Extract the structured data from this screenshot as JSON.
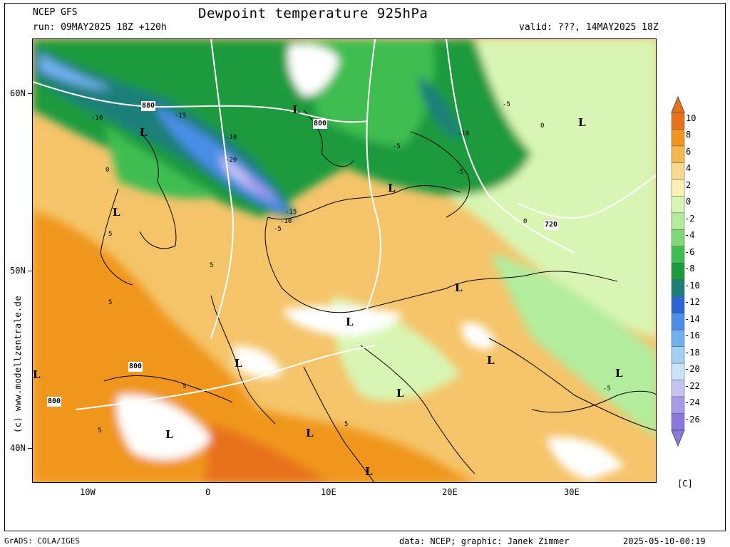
{
  "header": {
    "model": "NCEP GFS",
    "run": "run: 09MAY2025 18Z +120h",
    "title": "Dewpoint temperature 925hPa",
    "valid": "valid: ???, 14MAY2025 18Z"
  },
  "footer": {
    "left": "GrADS: COLA/IGES",
    "credit": "data: NCEP; graphic: Janek Zimmer",
    "timestamp": "2025-05-10-00:19"
  },
  "watermark": "(c) www.modellzentrale.de",
  "axes": {
    "lat_labels": [
      "60N",
      "50N",
      "40N"
    ],
    "lon_labels": [
      "10W",
      "0",
      "10E",
      "20E",
      "30E"
    ]
  },
  "colorbar": {
    "unit": "[C]",
    "labels": [
      "10",
      "8",
      "6",
      "4",
      "2",
      "0",
      "-2",
      "-4",
      "-6",
      "-8",
      "-10",
      "-12",
      "-14",
      "-16",
      "-18",
      "-20",
      "-22",
      "-24",
      "-26"
    ],
    "colors": [
      "#e8721a",
      "#f0961e",
      "#f5b64d",
      "#fbd98c",
      "#fbf0b2",
      "#d9f5b4",
      "#b3ec9c",
      "#7ed878",
      "#3fbd51",
      "#1b9a3e",
      "#1e7f7a",
      "#2a66d2",
      "#4a8ee6",
      "#6fb0f0",
      "#9fd0f6",
      "#c8e4fa",
      "#c6c2f2",
      "#a89ae8",
      "#8a78de"
    ]
  },
  "map_labels": {
    "lows": [
      "L",
      "L",
      "L",
      "L",
      "L",
      "L",
      "L",
      "L",
      "L",
      "L",
      "L",
      "L",
      "L",
      "L",
      "L"
    ],
    "isobars": [
      "880",
      "800",
      "720",
      "800",
      "800"
    ],
    "dewpoint_values": [
      "-10",
      "-15",
      "-10",
      "-20",
      "-15",
      "-10",
      "-5",
      "-5",
      "-10",
      "-5",
      "-5",
      "0",
      "0",
      "5",
      "5",
      "5",
      "5",
      "5",
      "5",
      "-5",
      "0"
    ]
  }
}
